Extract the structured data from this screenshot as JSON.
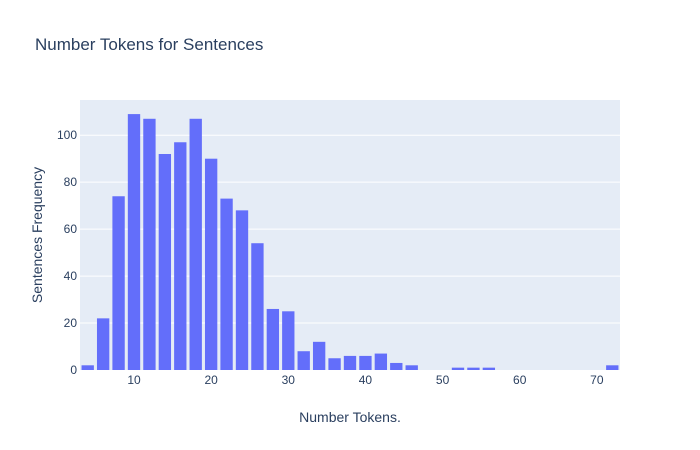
{
  "chart_data": {
    "type": "bar",
    "title": "Number Tokens for Sentences",
    "xlabel": "Number Tokens.",
    "ylabel": "Sentences Frequency",
    "x": [
      4,
      6,
      8,
      10,
      12,
      14,
      16,
      18,
      20,
      22,
      24,
      26,
      28,
      30,
      32,
      34,
      36,
      38,
      40,
      42,
      44,
      46,
      48,
      50,
      52,
      54,
      56,
      58,
      60,
      62,
      64,
      66,
      68,
      70,
      72
    ],
    "values": [
      2,
      22,
      74,
      109,
      107,
      92,
      97,
      107,
      90,
      73,
      68,
      54,
      26,
      25,
      8,
      12,
      5,
      6,
      6,
      7,
      3,
      2,
      0,
      0,
      1,
      1,
      1,
      0,
      0,
      0,
      0,
      0,
      0,
      0,
      2
    ],
    "xlim": [
      3,
      73
    ],
    "ylim": [
      0,
      115
    ],
    "xticks": [
      10,
      20,
      30,
      40,
      50,
      60,
      70
    ],
    "yticks": [
      0,
      20,
      40,
      60,
      80,
      100
    ],
    "bin_width": 2,
    "bar_color": "#636efa",
    "plot_bg": "#e5ecf6",
    "grid": true,
    "legend": false
  }
}
